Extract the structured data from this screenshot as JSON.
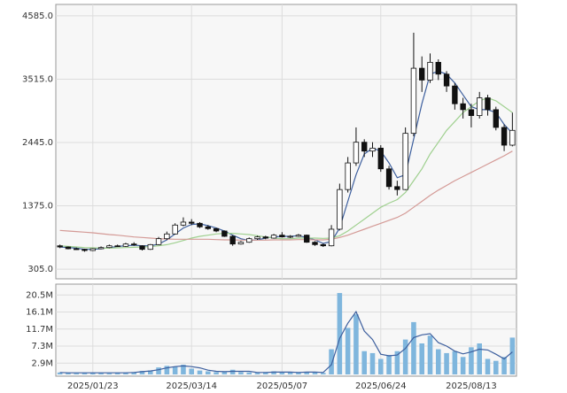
{
  "chart_data": [
    {
      "type": "candlestick",
      "ylim": [
        142,
        4778
      ],
      "yticks": [
        {
          "value": 4585,
          "label": "4585.0"
        },
        {
          "value": 3515,
          "label": "3515.0"
        },
        {
          "value": 2445,
          "label": "2445.0"
        },
        {
          "value": 1375,
          "label": "1375.0"
        },
        {
          "value": 305,
          "label": "305.0"
        }
      ],
      "grid": true,
      "up_color": "#ffffff",
      "down_color": "#111111",
      "open": [
        700,
        680,
        650,
        640,
        620,
        650,
        670,
        700,
        690,
        730,
        700,
        640,
        720,
        820,
        900,
        1050,
        1100,
        1080,
        1020,
        990,
        950,
        860,
        730,
        760,
        820,
        850,
        830,
        880,
        850,
        860,
        880,
        760,
        720,
        700,
        980,
        1650,
        2100,
        2450,
        2300,
        2350,
        2000,
        1700,
        1650,
        2600,
        3700,
        3500,
        3800,
        3600,
        3400,
        3100,
        3000,
        2900,
        3200,
        3000,
        2700,
        2400
      ],
      "high": [
        720,
        690,
        670,
        650,
        660,
        690,
        720,
        720,
        750,
        760,
        710,
        730,
        850,
        940,
        1080,
        1180,
        1150,
        1100,
        1050,
        1000,
        960,
        880,
        780,
        840,
        870,
        870,
        900,
        930,
        880,
        900,
        890,
        780,
        740,
        1050,
        1750,
        2200,
        2700,
        2500,
        2450,
        2400,
        2050,
        1800,
        2700,
        4300,
        3900,
        3950,
        3850,
        3650,
        3450,
        3200,
        3100,
        3300,
        3250,
        3050,
        2750,
        2950
      ],
      "low": [
        660,
        640,
        630,
        600,
        610,
        640,
        660,
        680,
        680,
        700,
        620,
        630,
        710,
        800,
        890,
        1030,
        1050,
        1000,
        970,
        930,
        850,
        700,
        720,
        750,
        800,
        810,
        820,
        840,
        830,
        850,
        750,
        700,
        680,
        690,
        960,
        1600,
        2050,
        2200,
        2200,
        1950,
        1650,
        1550,
        1640,
        2550,
        3300,
        3450,
        3500,
        3300,
        3000,
        2850,
        2700,
        2850,
        2900,
        2650,
        2300,
        2380
      ],
      "close": [
        680,
        650,
        640,
        620,
        650,
        670,
        700,
        690,
        730,
        720,
        640,
        720,
        820,
        900,
        1050,
        1100,
        1080,
        1020,
        990,
        950,
        860,
        730,
        760,
        820,
        850,
        830,
        880,
        850,
        860,
        880,
        760,
        720,
        700,
        980,
        1650,
        2100,
        2450,
        2300,
        2350,
        2000,
        1700,
        1650,
        2600,
        3700,
        3500,
        3800,
        3600,
        3400,
        3100,
        3000,
        2900,
        3200,
        3000,
        2700,
        2400,
        2650
      ],
      "series": [
        {
          "color": "#3d5f9e",
          "values": [
            680,
            670,
            660,
            640,
            640,
            650,
            670,
            690,
            700,
            710,
            700,
            700,
            730,
            800,
            900,
            1000,
            1060,
            1070,
            1040,
            1000,
            950,
            880,
            820,
            790,
            800,
            830,
            850,
            860,
            860,
            870,
            840,
            800,
            740,
            770,
            1000,
            1450,
            1900,
            2250,
            2350,
            2300,
            2100,
            1850,
            1900,
            2500,
            3100,
            3600,
            3650,
            3600,
            3450,
            3250,
            3050,
            3000,
            3000,
            2950,
            2750,
            2600
          ]
        },
        {
          "color": "#9fd08f",
          "values": [
            700,
            690,
            680,
            670,
            665,
            660,
            660,
            665,
            670,
            675,
            680,
            685,
            700,
            720,
            750,
            790,
            830,
            860,
            880,
            900,
            910,
            910,
            900,
            890,
            870,
            850,
            830,
            820,
            820,
            830,
            830,
            830,
            825,
            830,
            870,
            950,
            1050,
            1150,
            1250,
            1350,
            1420,
            1480,
            1600,
            1800,
            2000,
            2250,
            2450,
            2650,
            2800,
            2950,
            3050,
            3150,
            3200,
            3150,
            3050,
            2950
          ]
        },
        {
          "color": "#d49a96",
          "values": [
            960,
            950,
            940,
            930,
            920,
            905,
            890,
            880,
            865,
            850,
            840,
            830,
            820,
            815,
            810,
            810,
            810,
            810,
            810,
            805,
            800,
            800,
            795,
            795,
            795,
            795,
            800,
            800,
            800,
            805,
            805,
            800,
            800,
            810,
            840,
            880,
            930,
            980,
            1030,
            1080,
            1130,
            1180,
            1250,
            1350,
            1450,
            1550,
            1640,
            1720,
            1800,
            1870,
            1940,
            2010,
            2080,
            2150,
            2220,
            2300
          ]
        }
      ]
    },
    {
      "type": "bar",
      "ylim": [
        0,
        23.3
      ],
      "yticks": [
        {
          "value": 20.5,
          "label": "20.5M"
        },
        {
          "value": 16.1,
          "label": "16.1M"
        },
        {
          "value": 11.7,
          "label": "11.7M"
        },
        {
          "value": 7.3,
          "label": "7.3M"
        },
        {
          "value": 2.9,
          "label": "2.9M"
        }
      ],
      "grid": true,
      "color": "#7fb6dd",
      "categories": [
        null,
        null,
        null,
        null,
        "2025/01/23",
        null,
        null,
        null,
        null,
        null,
        null,
        null,
        null,
        null,
        null,
        null,
        "2025/03/14",
        null,
        null,
        null,
        null,
        null,
        null,
        null,
        null,
        null,
        null,
        "2025/05/07",
        null,
        null,
        null,
        null,
        null,
        null,
        null,
        null,
        null,
        null,
        null,
        "2025/06/24",
        null,
        null,
        null,
        null,
        null,
        null,
        null,
        null,
        null,
        null,
        "2025/08/13",
        null,
        null,
        null,
        null,
        null
      ],
      "values": [
        0.5,
        0.4,
        0.3,
        0.4,
        0.5,
        0.4,
        0.3,
        0.4,
        0.5,
        0.6,
        0.9,
        1.0,
        1.8,
        2.2,
        2.0,
        2.5,
        1.5,
        1.0,
        0.8,
        0.6,
        0.7,
        1.2,
        0.6,
        0.5,
        0.4,
        0.6,
        0.8,
        0.5,
        0.5,
        0.6,
        0.6,
        0.5,
        0.4,
        6.5,
        21.0,
        12.0,
        15.5,
        6.0,
        5.5,
        4.0,
        5.0,
        6.0,
        9.0,
        13.5,
        8.0,
        10.0,
        6.5,
        5.5,
        6.0,
        4.5,
        7.0,
        8.0,
        4.0,
        3.5,
        4.5,
        9.5
      ],
      "series": [
        {
          "color": "#3d5f9e",
          "values": [
            0.5,
            0.4,
            0.4,
            0.4,
            0.4,
            0.4,
            0.4,
            0.4,
            0.4,
            0.5,
            0.7,
            0.9,
            1.2,
            1.7,
            2.0,
            2.2,
            2.0,
            1.7,
            1.1,
            0.8,
            0.7,
            0.8,
            0.8,
            0.8,
            0.5,
            0.5,
            0.6,
            0.6,
            0.6,
            0.5,
            0.6,
            0.6,
            0.5,
            2.5,
            9.3,
            13.2,
            16.2,
            11.2,
            9.0,
            5.2,
            4.8,
            5.0,
            6.7,
            9.5,
            10.2,
            10.5,
            8.2,
            7.3,
            6.0,
            5.3,
            5.8,
            6.5,
            6.3,
            5.2,
            4.0,
            5.8
          ]
        }
      ]
    }
  ]
}
